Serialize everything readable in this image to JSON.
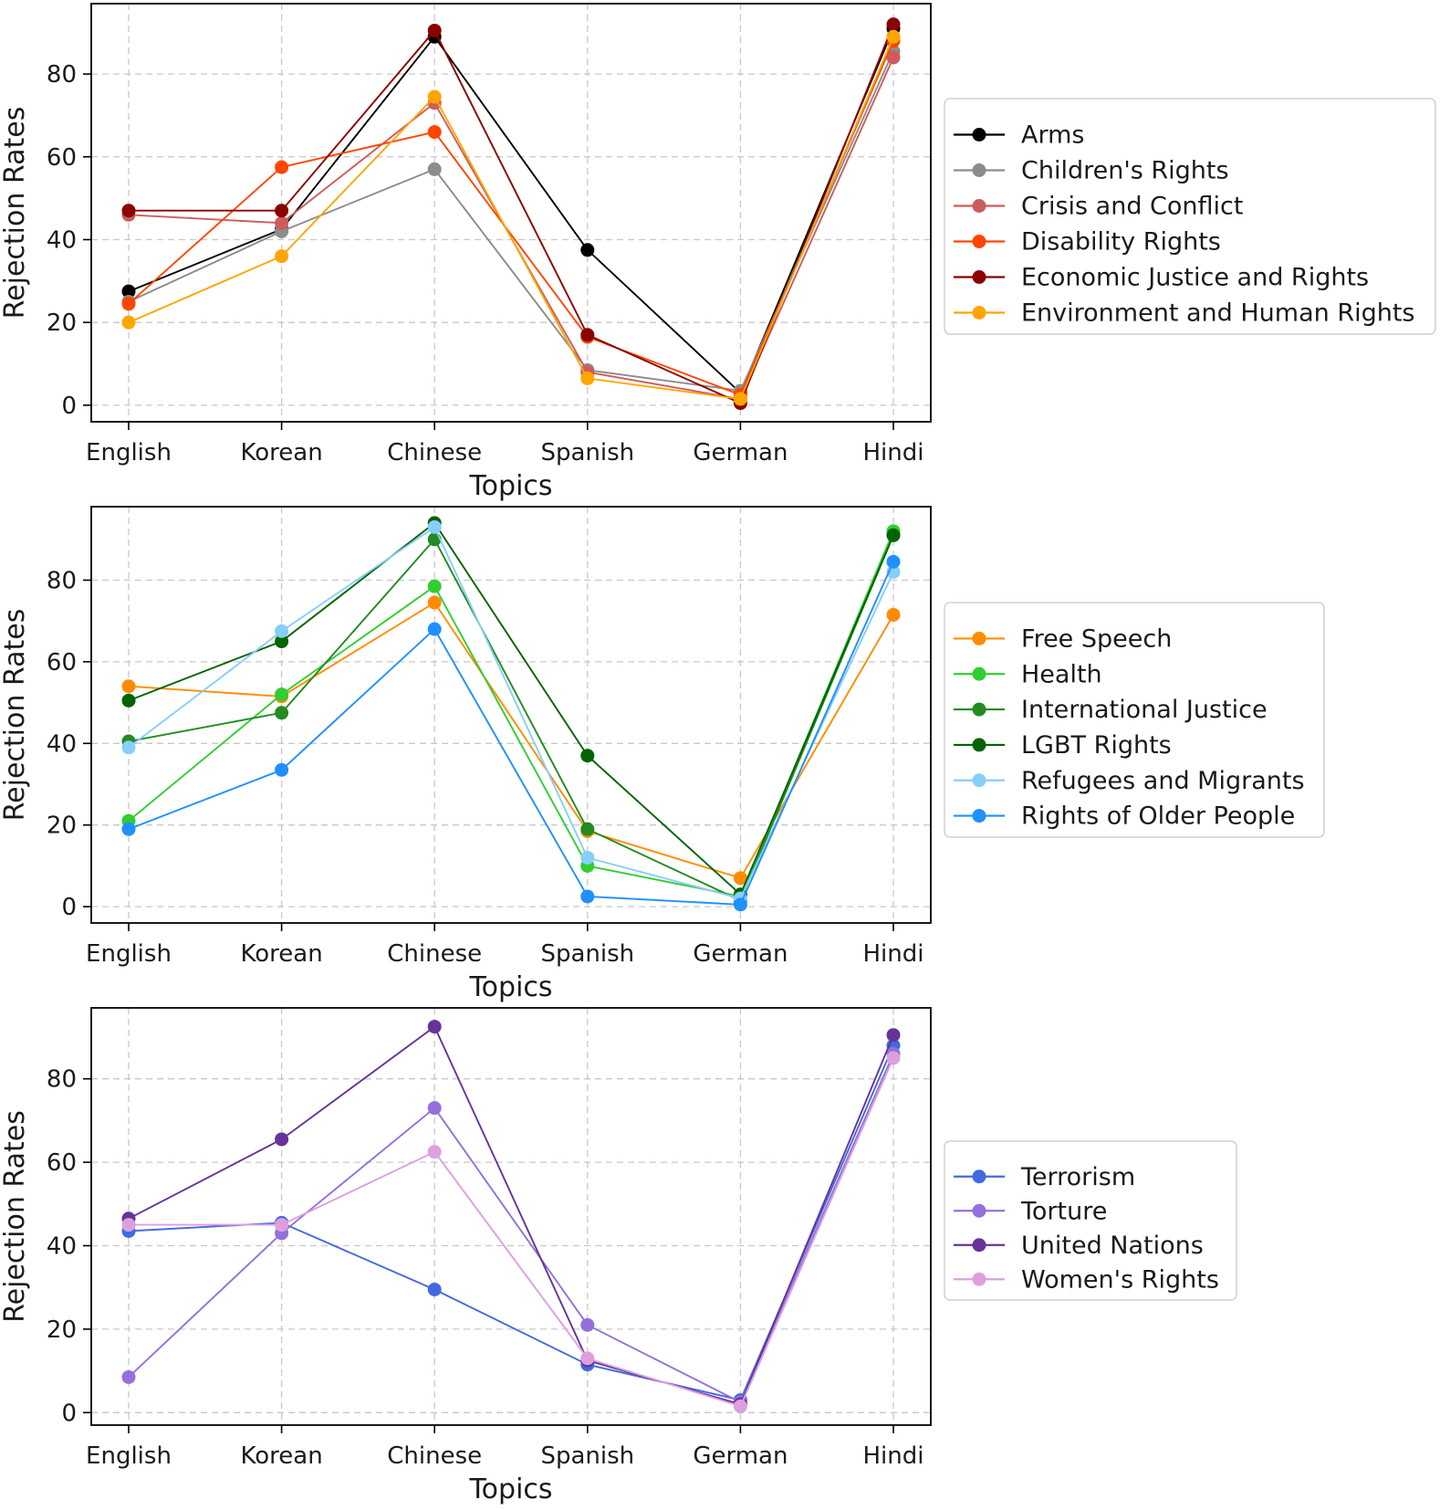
{
  "chart_data": [
    {
      "type": "line",
      "title": "",
      "xlabel": "Topics",
      "ylabel": "Rejection Rates",
      "categories": [
        "English",
        "Korean",
        "Chinese",
        "Spanish",
        "German",
        "Hindi"
      ],
      "ylim": [
        -4,
        97
      ],
      "yticks": [
        0,
        20,
        40,
        60,
        80
      ],
      "grid": true,
      "legend_position": "outside-right",
      "series": [
        {
          "name": "Arms",
          "color": "#000000",
          "values": [
            27.5,
            42.5,
            89,
            37.5,
            3,
            91
          ]
        },
        {
          "name": "Children's Rights",
          "color": "#8c8c8c",
          "values": [
            25,
            42,
            57,
            8.5,
            3.5,
            85.5
          ]
        },
        {
          "name": "Crisis and Conflict",
          "color": "#cd5c5c",
          "values": [
            46,
            44,
            73,
            8,
            1.5,
            84
          ]
        },
        {
          "name": "Disability Rights",
          "color": "#ff4500",
          "values": [
            24.5,
            57.5,
            66,
            16.5,
            2.5,
            88
          ]
        },
        {
          "name": "Economic Justice and Rights",
          "color": "#8b0000",
          "values": [
            47,
            47,
            90.5,
            17,
            0.5,
            92
          ]
        },
        {
          "name": "Environment and Human Rights",
          "color": "#ffa500",
          "values": [
            20,
            36,
            74.5,
            6.5,
            1.5,
            89
          ]
        }
      ]
    },
    {
      "type": "line",
      "title": "",
      "xlabel": "Topics",
      "ylabel": "Rejection Rates",
      "categories": [
        "English",
        "Korean",
        "Chinese",
        "Spanish",
        "German",
        "Hindi"
      ],
      "ylim": [
        -4,
        98
      ],
      "yticks": [
        0,
        20,
        40,
        60,
        80
      ],
      "grid": true,
      "legend_position": "outside-right",
      "series": [
        {
          "name": "Free Speech",
          "color": "#ff8c00",
          "values": [
            54,
            51.5,
            74.5,
            18.5,
            7,
            71.5
          ]
        },
        {
          "name": "Health",
          "color": "#32cd32",
          "values": [
            21,
            52,
            78.5,
            10,
            2.5,
            92
          ]
        },
        {
          "name": "International Justice",
          "color": "#228b22",
          "values": [
            40.5,
            47.5,
            90,
            19,
            1.5,
            91
          ]
        },
        {
          "name": "LGBT Rights",
          "color": "#006400",
          "values": [
            50.5,
            65,
            94,
            37,
            3,
            91
          ]
        },
        {
          "name": "Refugees and Migrants",
          "color": "#87cefa",
          "values": [
            39,
            67.5,
            93,
            12,
            2,
            82
          ]
        },
        {
          "name": "Rights of Older People",
          "color": "#1e90ff",
          "values": [
            19,
            33.5,
            68,
            2.5,
            0.5,
            84.5
          ]
        }
      ]
    },
    {
      "type": "line",
      "title": "",
      "xlabel": "Topics",
      "ylabel": "Rejection Rates",
      "categories": [
        "English",
        "Korean",
        "Chinese",
        "Spanish",
        "German",
        "Hindi"
      ],
      "ylim": [
        -3,
        97
      ],
      "yticks": [
        0,
        20,
        40,
        60,
        80
      ],
      "grid": true,
      "legend_position": "outside-right",
      "series": [
        {
          "name": "Terrorism",
          "color": "#4169e1",
          "values": [
            43.5,
            45.5,
            29.5,
            11.5,
            3,
            88
          ]
        },
        {
          "name": "Torture",
          "color": "#9370db",
          "values": [
            8.5,
            43,
            73,
            21,
            2.5,
            86
          ]
        },
        {
          "name": "United Nations",
          "color": "#663399",
          "values": [
            46.5,
            65.5,
            92.5,
            12.5,
            2,
            90.5
          ]
        },
        {
          "name": "Women's Rights",
          "color": "#dda0dd",
          "values": [
            45,
            45,
            62.5,
            13,
            1.5,
            85
          ]
        }
      ]
    }
  ]
}
